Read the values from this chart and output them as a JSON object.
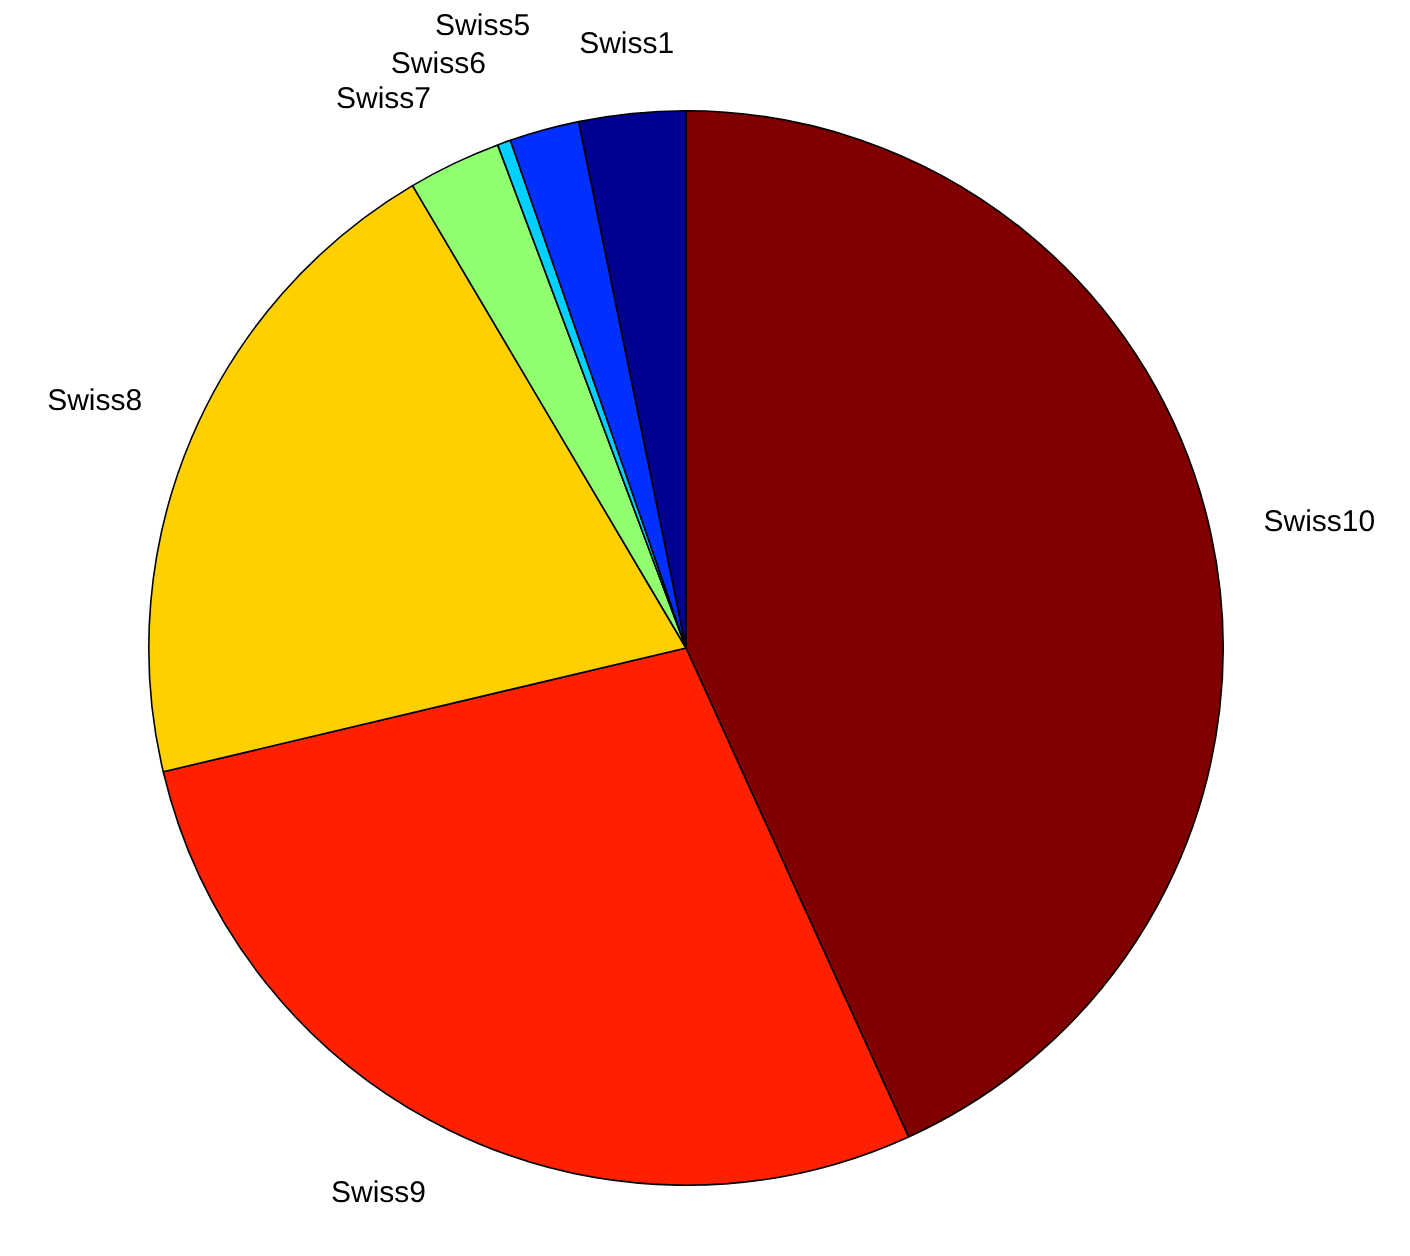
{
  "chart_data": {
    "type": "pie",
    "categories": [
      "Swiss10",
      "Swiss9",
      "Swiss8",
      "Swiss7",
      "Swiss6",
      "Swiss5",
      "Swiss1"
    ],
    "values": [
      43.2,
      28.1,
      20.2,
      2.8,
      0.4,
      2.1,
      3.2
    ],
    "colors": [
      "#800000",
      "#ff2000",
      "#ffd000",
      "#90ff70",
      "#00d0ff",
      "#0030ff",
      "#000090"
    ],
    "legend": false
  }
}
